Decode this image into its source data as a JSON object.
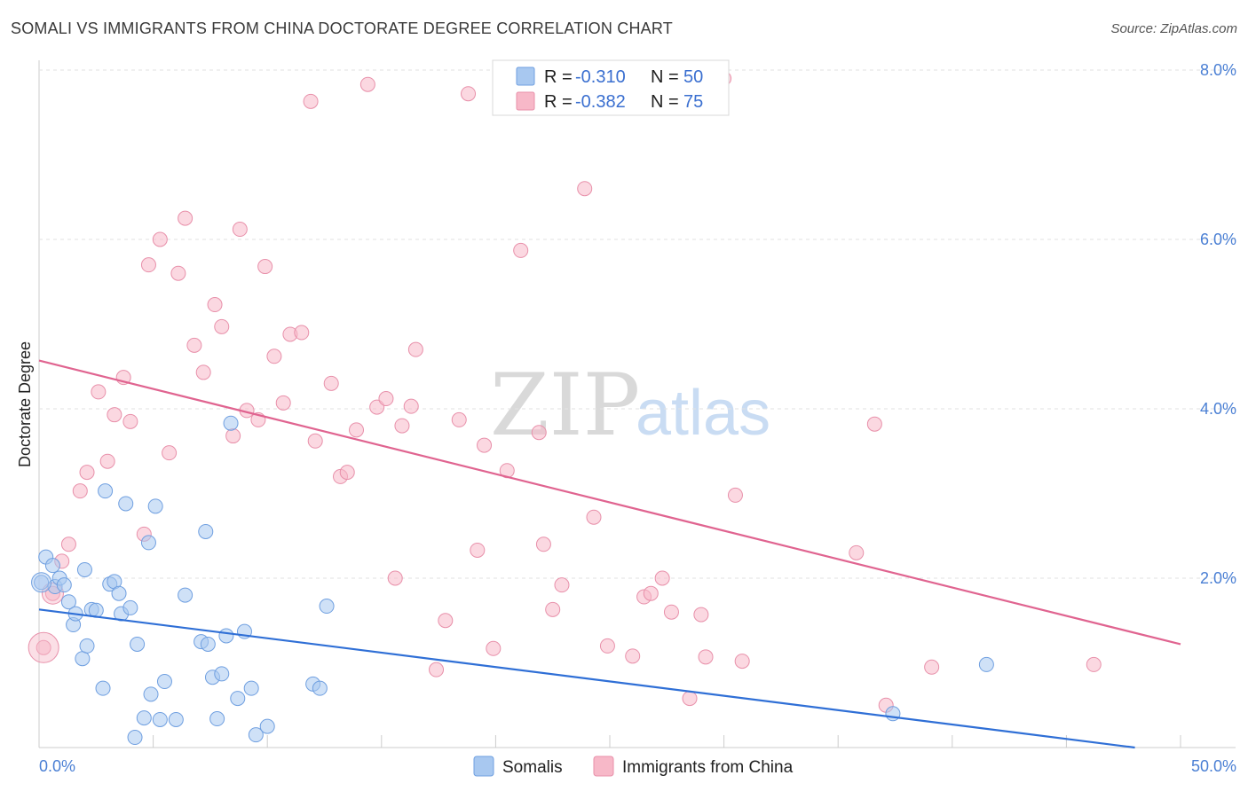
{
  "header": {
    "title": "SOMALI VS IMMIGRANTS FROM CHINA DOCTORATE DEGREE CORRELATION CHART",
    "source": "Source: ZipAtlas.com"
  },
  "colors": {
    "somali_fill": "#a8c8f0",
    "somali_stroke": "#6f9fe0",
    "somali_line": "#2f6fd6",
    "china_fill": "#f7b8c8",
    "china_stroke": "#e890aa",
    "china_line": "#e06490",
    "grid": "#e2e2e2",
    "tick_text": "#4a7fd4"
  },
  "legend": {
    "rows": [
      {
        "r_label": "R = ",
        "r_value": "-0.310",
        "n_label": "N = ",
        "n_value": "50"
      },
      {
        "r_label": "R = ",
        "r_value": "-0.382",
        "n_label": "N = ",
        "n_value": "75"
      }
    ]
  },
  "watermark": {
    "zip": "ZIP",
    "atlas": "atlas"
  },
  "chart_data": {
    "type": "scatter",
    "title": "SOMALI VS IMMIGRANTS FROM CHINA DOCTORATE DEGREE CORRELATION CHART",
    "xlabel": "",
    "ylabel": "Doctorate Degree",
    "xlim": [
      0,
      50
    ],
    "ylim": [
      0,
      8
    ],
    "x_tick_labels": [
      "0.0%",
      "50.0%"
    ],
    "y_ticks": [
      2,
      4,
      6,
      8
    ],
    "y_tick_labels": [
      "2.0%",
      "4.0%",
      "6.0%",
      "8.0%"
    ],
    "grid": true,
    "legend_position": "top-center",
    "series": [
      {
        "name": "Somalis",
        "trend": {
          "x": [
            0,
            48
          ],
          "y": [
            1.63,
            0.0
          ]
        },
        "points": [
          [
            0.1,
            1.95
          ],
          [
            0.3,
            2.25
          ],
          [
            0.6,
            2.15
          ],
          [
            0.7,
            1.9
          ],
          [
            0.9,
            2.0
          ],
          [
            1.1,
            1.92
          ],
          [
            1.3,
            1.72
          ],
          [
            1.5,
            1.45
          ],
          [
            1.6,
            1.58
          ],
          [
            1.9,
            1.05
          ],
          [
            2.0,
            2.1
          ],
          [
            2.1,
            1.2
          ],
          [
            2.3,
            1.63
          ],
          [
            2.5,
            1.62
          ],
          [
            2.8,
            0.7
          ],
          [
            2.9,
            3.03
          ],
          [
            3.1,
            1.93
          ],
          [
            3.3,
            1.96
          ],
          [
            3.5,
            1.82
          ],
          [
            3.6,
            1.58
          ],
          [
            3.8,
            2.88
          ],
          [
            4.0,
            1.65
          ],
          [
            4.2,
            0.12
          ],
          [
            4.3,
            1.22
          ],
          [
            4.6,
            0.35
          ],
          [
            4.8,
            2.42
          ],
          [
            4.9,
            0.63
          ],
          [
            5.1,
            2.85
          ],
          [
            5.3,
            0.33
          ],
          [
            5.5,
            0.78
          ],
          [
            6.0,
            0.33
          ],
          [
            6.4,
            1.8
          ],
          [
            7.1,
            1.25
          ],
          [
            7.3,
            2.55
          ],
          [
            7.4,
            1.22
          ],
          [
            7.6,
            0.83
          ],
          [
            7.8,
            0.34
          ],
          [
            8.0,
            0.87
          ],
          [
            8.2,
            1.32
          ],
          [
            8.4,
            3.83
          ],
          [
            8.7,
            0.58
          ],
          [
            9.0,
            1.37
          ],
          [
            9.3,
            0.7
          ],
          [
            9.5,
            0.15
          ],
          [
            10.0,
            0.25
          ],
          [
            12.0,
            0.75
          ],
          [
            12.3,
            0.7
          ],
          [
            12.6,
            1.67
          ],
          [
            37.4,
            0.4
          ],
          [
            41.5,
            0.98
          ]
        ]
      },
      {
        "name": "Immigrants from China",
        "trend": {
          "x": [
            0,
            50
          ],
          "y": [
            4.57,
            1.22
          ]
        },
        "points": [
          [
            0.2,
            1.18
          ],
          [
            0.6,
            1.82
          ],
          [
            1.0,
            2.2
          ],
          [
            1.3,
            2.4
          ],
          [
            1.8,
            3.03
          ],
          [
            2.1,
            3.25
          ],
          [
            2.6,
            4.2
          ],
          [
            3.0,
            3.38
          ],
          [
            3.3,
            3.93
          ],
          [
            3.7,
            4.37
          ],
          [
            4.0,
            3.85
          ],
          [
            4.6,
            2.52
          ],
          [
            4.8,
            5.7
          ],
          [
            5.3,
            6.0
          ],
          [
            5.7,
            3.48
          ],
          [
            6.1,
            5.6
          ],
          [
            6.4,
            6.25
          ],
          [
            6.8,
            4.75
          ],
          [
            7.2,
            4.43
          ],
          [
            7.7,
            5.23
          ],
          [
            8.0,
            4.97
          ],
          [
            8.5,
            3.68
          ],
          [
            8.8,
            6.12
          ],
          [
            9.1,
            3.98
          ],
          [
            9.6,
            3.87
          ],
          [
            9.9,
            5.68
          ],
          [
            10.3,
            4.62
          ],
          [
            10.7,
            4.07
          ],
          [
            11.0,
            4.88
          ],
          [
            11.5,
            4.9
          ],
          [
            11.9,
            7.63
          ],
          [
            12.1,
            3.62
          ],
          [
            12.8,
            4.3
          ],
          [
            13.2,
            3.2
          ],
          [
            13.5,
            3.25
          ],
          [
            13.9,
            3.75
          ],
          [
            14.4,
            7.83
          ],
          [
            14.8,
            4.02
          ],
          [
            15.2,
            4.12
          ],
          [
            15.6,
            2.0
          ],
          [
            15.9,
            3.8
          ],
          [
            16.3,
            4.03
          ],
          [
            16.5,
            4.7
          ],
          [
            17.4,
            0.92
          ],
          [
            17.8,
            1.5
          ],
          [
            18.4,
            3.87
          ],
          [
            18.8,
            7.72
          ],
          [
            19.2,
            2.33
          ],
          [
            19.5,
            3.57
          ],
          [
            19.9,
            1.17
          ],
          [
            20.5,
            3.27
          ],
          [
            21.1,
            5.87
          ],
          [
            21.9,
            3.72
          ],
          [
            22.1,
            2.4
          ],
          [
            22.5,
            1.63
          ],
          [
            22.9,
            1.92
          ],
          [
            23.9,
            6.6
          ],
          [
            24.3,
            2.72
          ],
          [
            24.9,
            1.2
          ],
          [
            26.0,
            1.08
          ],
          [
            26.5,
            1.78
          ],
          [
            26.8,
            1.82
          ],
          [
            27.3,
            2.0
          ],
          [
            27.7,
            1.6
          ],
          [
            28.5,
            0.58
          ],
          [
            29.0,
            1.57
          ],
          [
            29.2,
            1.07
          ],
          [
            30.0,
            7.9
          ],
          [
            30.5,
            2.98
          ],
          [
            30.8,
            1.02
          ],
          [
            35.8,
            2.3
          ],
          [
            36.6,
            3.82
          ],
          [
            37.1,
            0.5
          ],
          [
            39.1,
            0.95
          ],
          [
            46.2,
            0.98
          ]
        ]
      }
    ]
  }
}
